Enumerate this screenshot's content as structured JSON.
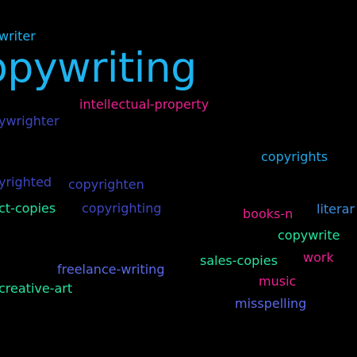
{
  "cloud": {
    "background": "#000000",
    "words": [
      {
        "text": "writer",
        "color": "#1fb3ef"
      },
      {
        "text": "opywriting",
        "color": "#1fb3ef"
      },
      {
        "text": "intellectual-property",
        "color": "#e8218f"
      },
      {
        "text": "ywrighter",
        "color": "#3d47c2"
      },
      {
        "text": "copyrights",
        "color": "#1fa6e6"
      },
      {
        "text": "yrighted",
        "color": "#3d47c2"
      },
      {
        "text": "copyrighten",
        "color": "#3d47c2"
      },
      {
        "text": "ct-copies",
        "color": "#26e39e"
      },
      {
        "text": "copyrighting",
        "color": "#3d47c2"
      },
      {
        "text": "books-n",
        "color": "#e8218f"
      },
      {
        "text": "literar",
        "color": "#3d8fe0"
      },
      {
        "text": "copywrite",
        "color": "#26e39e"
      },
      {
        "text": "work",
        "color": "#e8218f"
      },
      {
        "text": "sales-copies",
        "color": "#26e39e"
      },
      {
        "text": "freelance-writing",
        "color": "#5a6ae8"
      },
      {
        "text": "music",
        "color": "#e8218f"
      },
      {
        "text": "creative-art",
        "color": "#26e39e"
      },
      {
        "text": "misspelling",
        "color": "#5a6ae8"
      }
    ]
  }
}
